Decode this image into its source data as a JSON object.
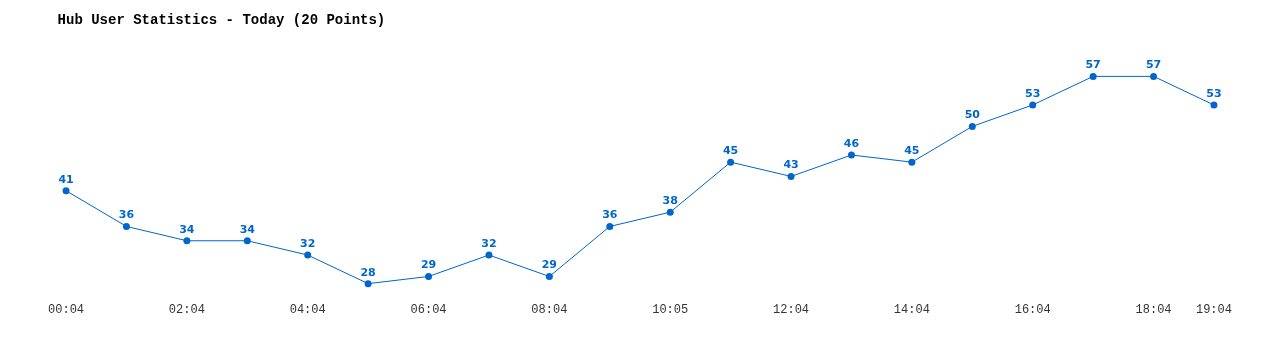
{
  "chart_data": {
    "type": "line",
    "title": "Hub User Statistics - Today (20 Points)",
    "categories": [
      "00:04",
      null,
      "02:04",
      null,
      "04:04",
      null,
      "06:04",
      null,
      "08:04",
      null,
      "10:05",
      null,
      "12:04",
      null,
      "14:04",
      null,
      "16:04",
      null,
      "18:04",
      "19:04"
    ],
    "series": [
      {
        "color": "#0066cc",
        "values": [
          41,
          36,
          34,
          34,
          32,
          28,
          29,
          32,
          29,
          36,
          38,
          45,
          43,
          46,
          45,
          50,
          53,
          57,
          57,
          53
        ]
      }
    ],
    "data_labels": true,
    "marker": "circle",
    "line_style": "solid",
    "legend": false
  }
}
